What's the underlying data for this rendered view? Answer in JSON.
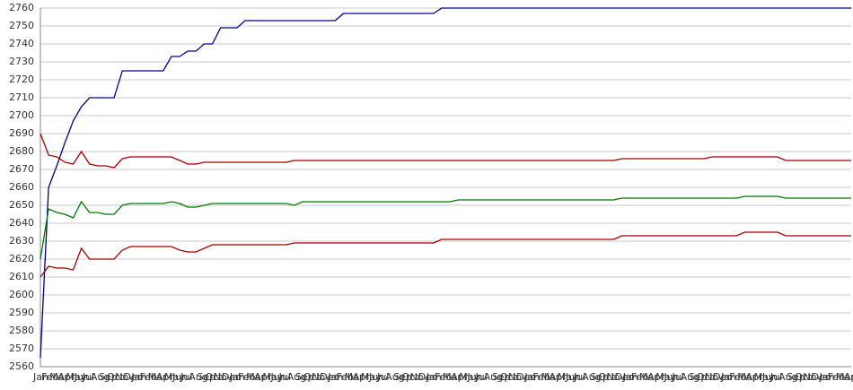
{
  "chart_data": {
    "type": "line",
    "categories": [
      "Jan",
      "Feb",
      "Mar",
      "Apr",
      "May",
      "Jun",
      "Jul",
      "Aug",
      "Sep",
      "Oct",
      "Nov",
      "Dec",
      "Jan",
      "Feb",
      "Mar",
      "Apr",
      "May",
      "Jun",
      "Jul",
      "Aug",
      "Sep",
      "Oct",
      "Nov",
      "Dec",
      "Jan",
      "Feb",
      "Mar",
      "Apr",
      "May",
      "Jun",
      "Jul",
      "Aug",
      "Sep",
      "Oct",
      "Nov",
      "Dec",
      "Jan",
      "Feb",
      "Mar",
      "Apr",
      "May",
      "Jun",
      "Jul",
      "Aug",
      "Sep",
      "Oct",
      "Nov",
      "Dec",
      "Jan",
      "Feb",
      "Mar",
      "Apr",
      "May",
      "Jun",
      "Jul",
      "Aug",
      "Sep",
      "Oct",
      "Nov",
      "Dec",
      "Jan",
      "Feb",
      "Mar",
      "Apr",
      "May",
      "Jun",
      "Jul",
      "Aug",
      "Sep",
      "Oct",
      "Nov",
      "Dec",
      "Jan",
      "Feb",
      "Mar",
      "Apr",
      "May",
      "Jun",
      "Jul",
      "Aug",
      "Sep",
      "Oct",
      "Nov",
      "Dec",
      "Jan",
      "Feb",
      "Mar",
      "Apr",
      "May",
      "Jun",
      "Jul",
      "Aug",
      "Sep",
      "Oct",
      "Nov",
      "Dec",
      "Jan",
      "Feb",
      "Mar",
      "Apr"
    ],
    "series": [
      {
        "color": "#00008b",
        "values": [
          2565,
          2660,
          2672,
          2685,
          2697,
          2705,
          2710,
          2710,
          2710,
          2710,
          2725,
          2725,
          2725,
          2725,
          2725,
          2725,
          2733,
          2733,
          2736,
          2736,
          2740,
          2740,
          2749,
          2749,
          2749,
          2753,
          2753,
          2753,
          2753,
          2753,
          2753,
          2753,
          2753,
          2753,
          2753,
          2753,
          2753,
          2757,
          2757,
          2757,
          2757,
          2757,
          2757,
          2757,
          2757,
          2757,
          2757,
          2757,
          2757,
          2760,
          2760,
          2760,
          2760,
          2760,
          2760,
          2760,
          2760,
          2760,
          2760,
          2760,
          2760,
          2760,
          2760,
          2760,
          2760,
          2760,
          2760,
          2760,
          2760,
          2760,
          2760,
          2760,
          2760,
          2760,
          2760,
          2760,
          2760,
          2760,
          2760,
          2760,
          2760,
          2760,
          2760,
          2760,
          2760,
          2760,
          2760,
          2760,
          2760,
          2760,
          2760,
          2760,
          2760,
          2760,
          2760,
          2760,
          2760,
          2760,
          2760,
          2760
        ]
      },
      {
        "color": "#a50000",
        "values": [
          2690,
          2678,
          2677,
          2674,
          2673,
          2680,
          2673,
          2672,
          2672,
          2671,
          2676,
          2677,
          2677,
          2677,
          2677,
          2677,
          2677,
          2675,
          2673,
          2673,
          2674,
          2674,
          2674,
          2674,
          2674,
          2674,
          2674,
          2674,
          2674,
          2674,
          2674,
          2675,
          2675,
          2675,
          2675,
          2675,
          2675,
          2675,
          2675,
          2675,
          2675,
          2675,
          2675,
          2675,
          2675,
          2675,
          2675,
          2675,
          2675,
          2675,
          2675,
          2675,
          2675,
          2675,
          2675,
          2675,
          2675,
          2675,
          2675,
          2675,
          2675,
          2675,
          2675,
          2675,
          2675,
          2675,
          2675,
          2675,
          2675,
          2675,
          2675,
          2676,
          2676,
          2676,
          2676,
          2676,
          2676,
          2676,
          2676,
          2676,
          2676,
          2676,
          2677,
          2677,
          2677,
          2677,
          2677,
          2677,
          2677,
          2677,
          2677,
          2675,
          2675,
          2675,
          2675,
          2675,
          2675,
          2675,
          2675,
          2675
        ]
      },
      {
        "color": "#007800",
        "values": [
          2620,
          2648,
          2646,
          2645,
          2643,
          2652,
          2646,
          2646,
          2645,
          2645,
          2650,
          2651,
          2651,
          2651,
          2651,
          2651,
          2652,
          2651,
          2649,
          2649,
          2650,
          2651,
          2651,
          2651,
          2651,
          2651,
          2651,
          2651,
          2651,
          2651,
          2651,
          2650,
          2652,
          2652,
          2652,
          2652,
          2652,
          2652,
          2652,
          2652,
          2652,
          2652,
          2652,
          2652,
          2652,
          2652,
          2652,
          2652,
          2652,
          2652,
          2652,
          2653,
          2653,
          2653,
          2653,
          2653,
          2653,
          2653,
          2653,
          2653,
          2653,
          2653,
          2653,
          2653,
          2653,
          2653,
          2653,
          2653,
          2653,
          2653,
          2653,
          2654,
          2654,
          2654,
          2654,
          2654,
          2654,
          2654,
          2654,
          2654,
          2654,
          2654,
          2654,
          2654,
          2654,
          2654,
          2655,
          2655,
          2655,
          2655,
          2655,
          2654,
          2654,
          2654,
          2654,
          2654,
          2654,
          2654,
          2654,
          2654
        ]
      },
      {
        "color": "#a50000",
        "values": [
          2610,
          2616,
          2615,
          2615,
          2614,
          2626,
          2620,
          2620,
          2620,
          2620,
          2625,
          2627,
          2627,
          2627,
          2627,
          2627,
          2627,
          2625,
          2624,
          2624,
          2626,
          2628,
          2628,
          2628,
          2628,
          2628,
          2628,
          2628,
          2628,
          2628,
          2628,
          2629,
          2629,
          2629,
          2629,
          2629,
          2629,
          2629,
          2629,
          2629,
          2629,
          2629,
          2629,
          2629,
          2629,
          2629,
          2629,
          2629,
          2629,
          2631,
          2631,
          2631,
          2631,
          2631,
          2631,
          2631,
          2631,
          2631,
          2631,
          2631,
          2631,
          2631,
          2631,
          2631,
          2631,
          2631,
          2631,
          2631,
          2631,
          2631,
          2631,
          2633,
          2633,
          2633,
          2633,
          2633,
          2633,
          2633,
          2633,
          2633,
          2633,
          2633,
          2633,
          2633,
          2633,
          2633,
          2635,
          2635,
          2635,
          2635,
          2635,
          2633,
          2633,
          2633,
          2633,
          2633,
          2633,
          2633,
          2633,
          2633
        ]
      }
    ],
    "ylim": [
      2560,
      2760
    ],
    "yticks": [
      2560,
      2570,
      2580,
      2590,
      2600,
      2610,
      2620,
      2630,
      2640,
      2650,
      2660,
      2670,
      2680,
      2690,
      2700,
      2710,
      2720,
      2730,
      2740,
      2750,
      2760
    ],
    "grid": true
  }
}
